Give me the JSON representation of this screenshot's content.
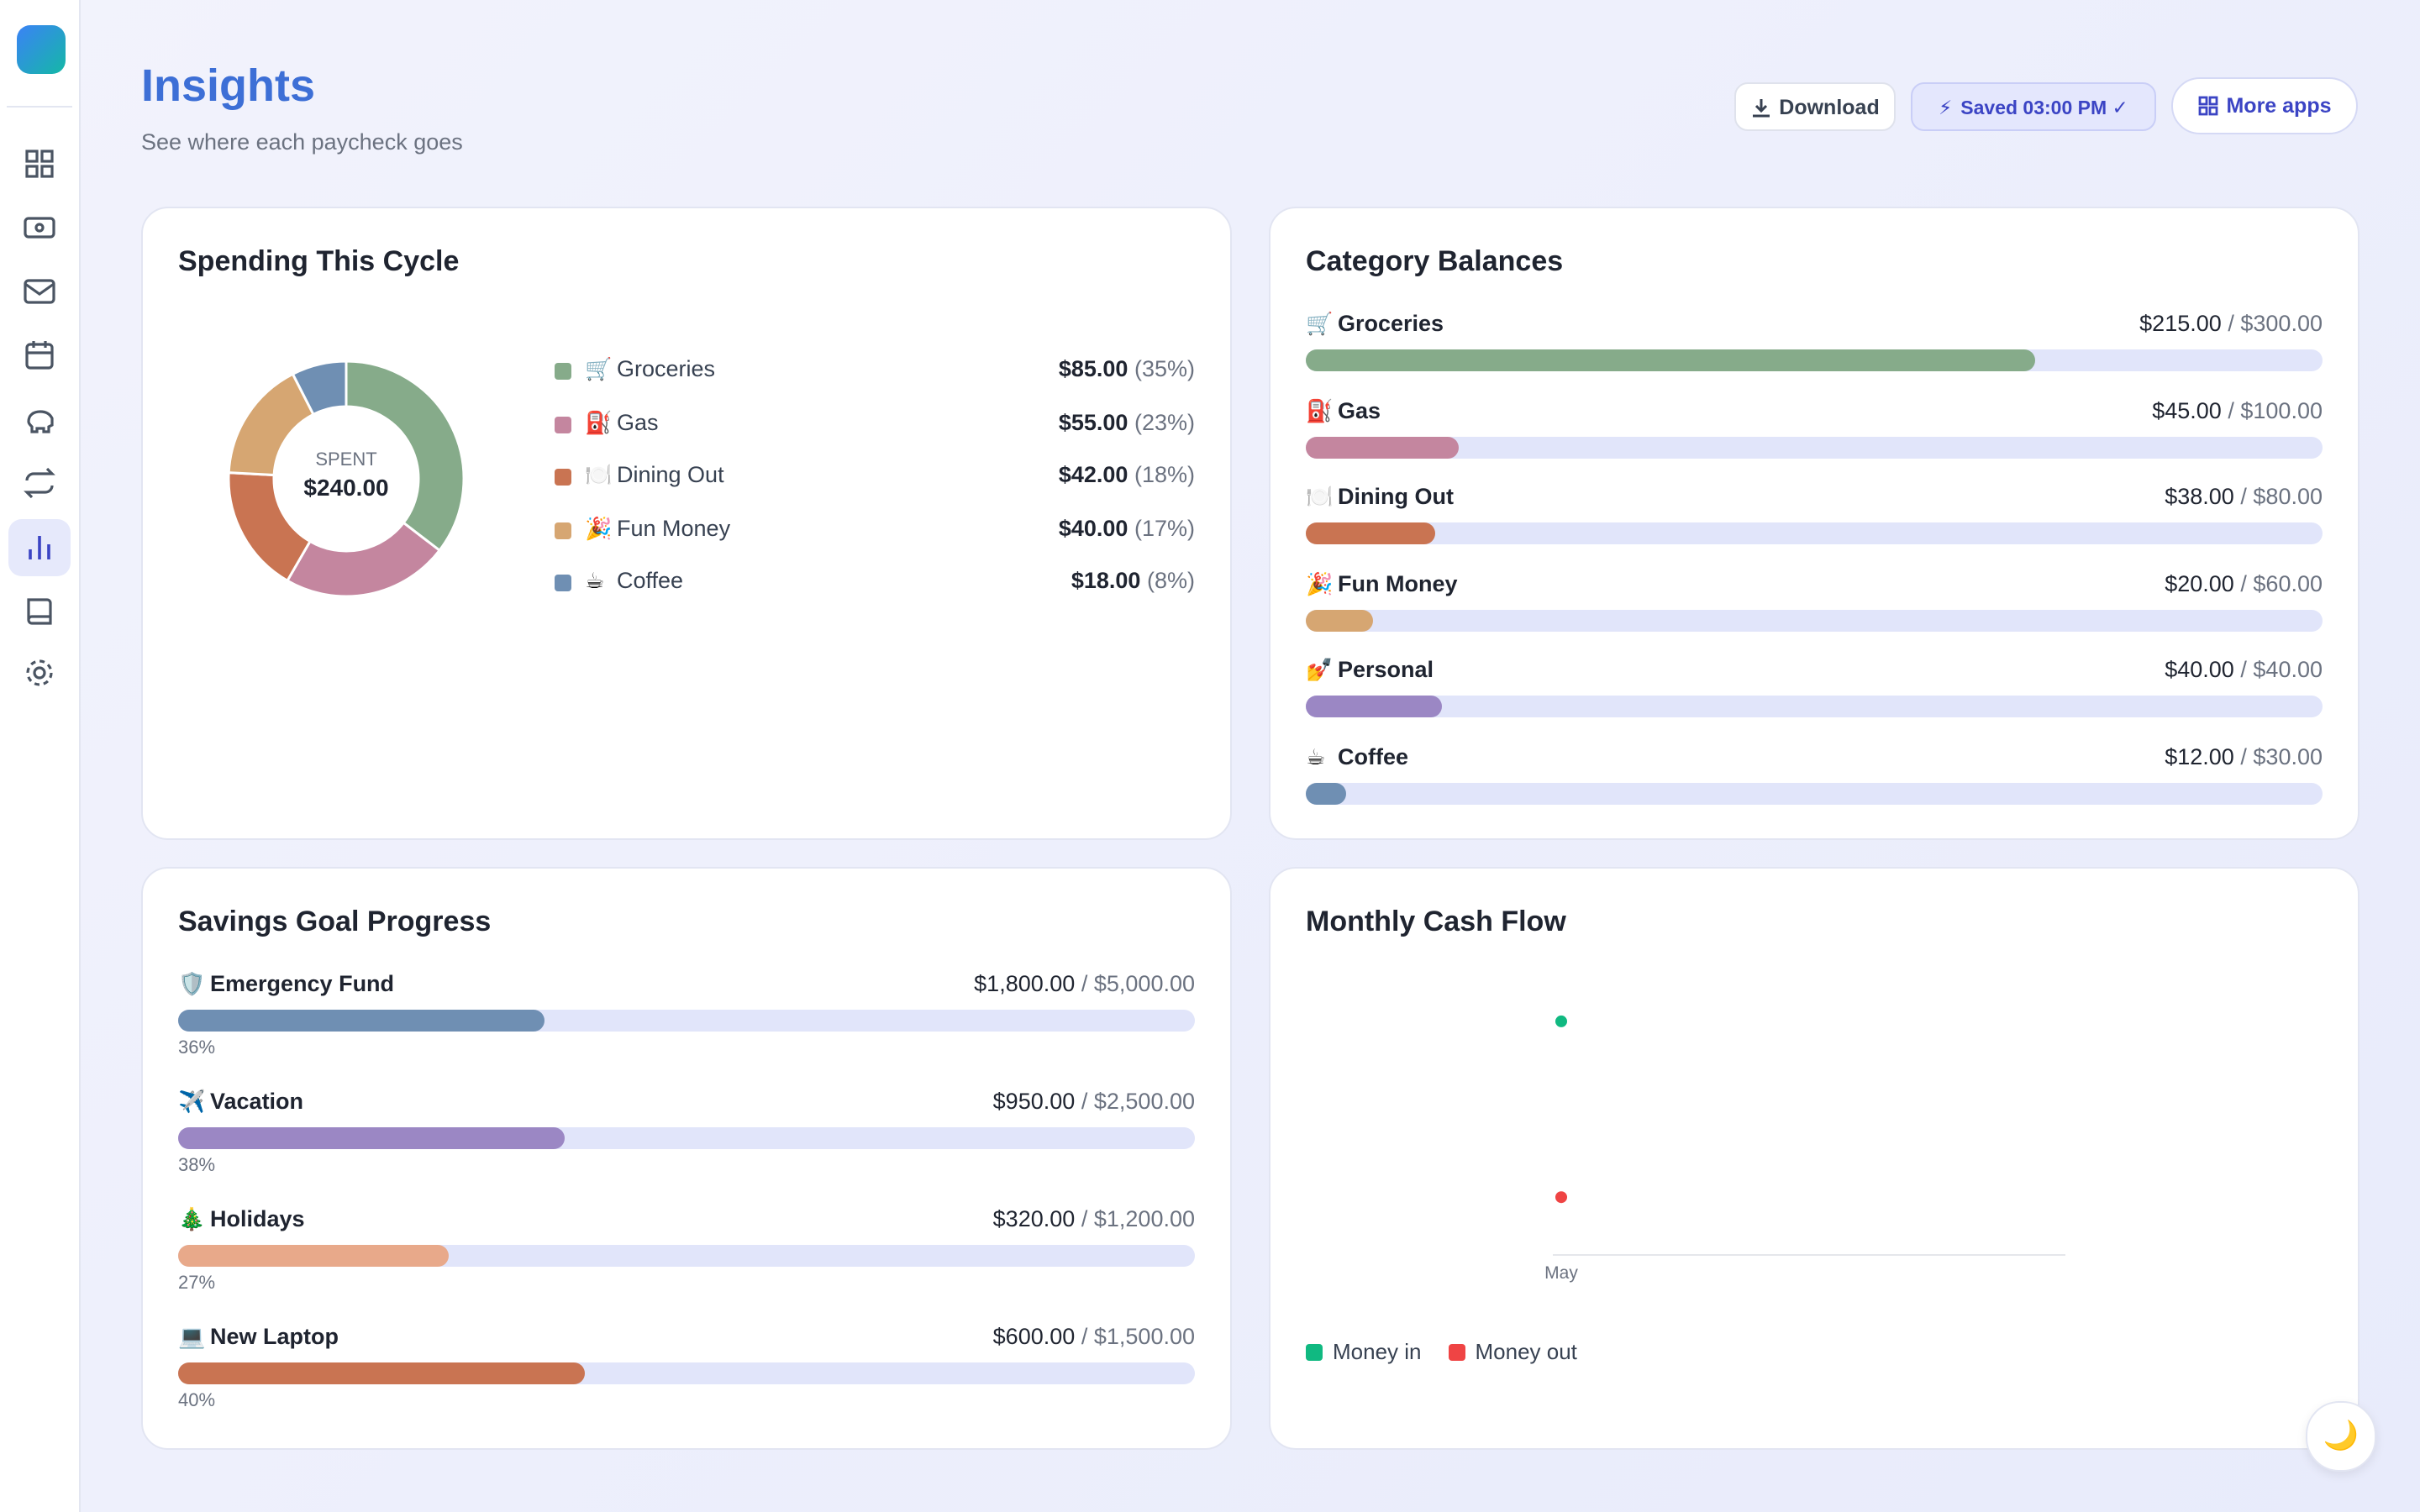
{
  "header": {
    "title": "Insights",
    "subtitle": "See where each paycheck goes",
    "download": "Download",
    "saved_icon": "⚡",
    "saved": "Saved 03:00 PM ✓",
    "more_apps": "More apps"
  },
  "chart_data": [
    {
      "type": "pie",
      "title": "Spending This Cycle",
      "center_label": "SPENT",
      "total": {
        "value": 240,
        "label": "$240.00"
      },
      "categories": [
        "Groceries",
        "Gas",
        "Dining Out",
        "Fun Money",
        "Coffee"
      ],
      "icons": [
        "🛒",
        "⛽",
        "🍽️",
        "🎉",
        "☕"
      ],
      "values": [
        85,
        55,
        42,
        40,
        18
      ],
      "value_labels": [
        "$85.00",
        "$55.00",
        "$42.00",
        "$40.00",
        "$18.00"
      ],
      "percent_labels": [
        "(35%)",
        "(23%)",
        "(18%)",
        "(17%)",
        "(8%)"
      ],
      "colors": [
        "#86ab8a",
        "#c4869f",
        "#c97452",
        "#d6a672",
        "#6f8fb3"
      ]
    },
    {
      "type": "scatter",
      "title": "Monthly Cash Flow",
      "categories": [
        "May"
      ],
      "series": [
        {
          "name": "Money in",
          "color": "#10b981",
          "values": [
            970
          ]
        },
        {
          "name": "Money out",
          "color": "#ef4444",
          "values": [
            240
          ]
        }
      ],
      "ylim": [
        0,
        1200
      ],
      "legend": "bottom-left"
    }
  ],
  "balances": {
    "title": "Category Balances",
    "separator": "/",
    "rows": [
      {
        "icon": "🛒",
        "name": "Groceries",
        "amount": {
          "value": 215,
          "label": "$215.00"
        },
        "budget": {
          "value": 300,
          "label": "$300.00"
        },
        "color": "#86ab8a"
      },
      {
        "icon": "⛽",
        "name": "Gas",
        "amount": {
          "value": 45,
          "label": "$45.00"
        },
        "budget": {
          "value": 100,
          "label": "$100.00"
        },
        "color": "#c4869f"
      },
      {
        "icon": "🍽️",
        "name": "Dining Out",
        "amount": {
          "value": 38,
          "label": "$38.00"
        },
        "budget": {
          "value": 80,
          "label": "$80.00"
        },
        "color": "#c97452"
      },
      {
        "icon": "🎉",
        "name": "Fun Money",
        "amount": {
          "value": 20,
          "label": "$20.00"
        },
        "budget": {
          "value": 60,
          "label": "$60.00"
        },
        "color": "#d6a672"
      },
      {
        "icon": "💅",
        "name": "Personal",
        "amount": {
          "value": 40,
          "label": "$40.00"
        },
        "budget": {
          "value": 40,
          "label": "$40.00"
        },
        "color": "#9b87c4"
      },
      {
        "icon": "☕",
        "name": "Coffee",
        "amount": {
          "value": 12,
          "label": "$12.00"
        },
        "budget": {
          "value": 30,
          "label": "$30.00"
        },
        "color": "#6f8fb3"
      }
    ]
  },
  "savings": {
    "title": "Savings Goal Progress",
    "separator": "/",
    "rows": [
      {
        "icon": "🛡️",
        "name": "Emergency Fund",
        "saved": {
          "value": 1800,
          "label": "$1,800.00"
        },
        "target": {
          "value": 5000,
          "label": "$5,000.00"
        },
        "percent": {
          "value": 36,
          "label": "36%"
        },
        "color": "#6f8fb3"
      },
      {
        "icon": "✈️",
        "name": "Vacation",
        "saved": {
          "value": 950,
          "label": "$950.00"
        },
        "target": {
          "value": 2500,
          "label": "$2,500.00"
        },
        "percent": {
          "value": 38,
          "label": "38%"
        },
        "color": "#9b87c4"
      },
      {
        "icon": "🎄",
        "name": "Holidays",
        "saved": {
          "value": 320,
          "label": "$320.00"
        },
        "target": {
          "value": 1200,
          "label": "$1,200.00"
        },
        "percent": {
          "value": 27,
          "label": "27%"
        },
        "color": "#e8a98a"
      },
      {
        "icon": "💻",
        "name": "New Laptop",
        "saved": {
          "value": 600,
          "label": "$600.00"
        },
        "target": {
          "value": 1500,
          "label": "$1,500.00"
        },
        "percent": {
          "value": 40,
          "label": "40%"
        },
        "color": "#c97452"
      }
    ]
  },
  "theme_toggle": "🌙"
}
